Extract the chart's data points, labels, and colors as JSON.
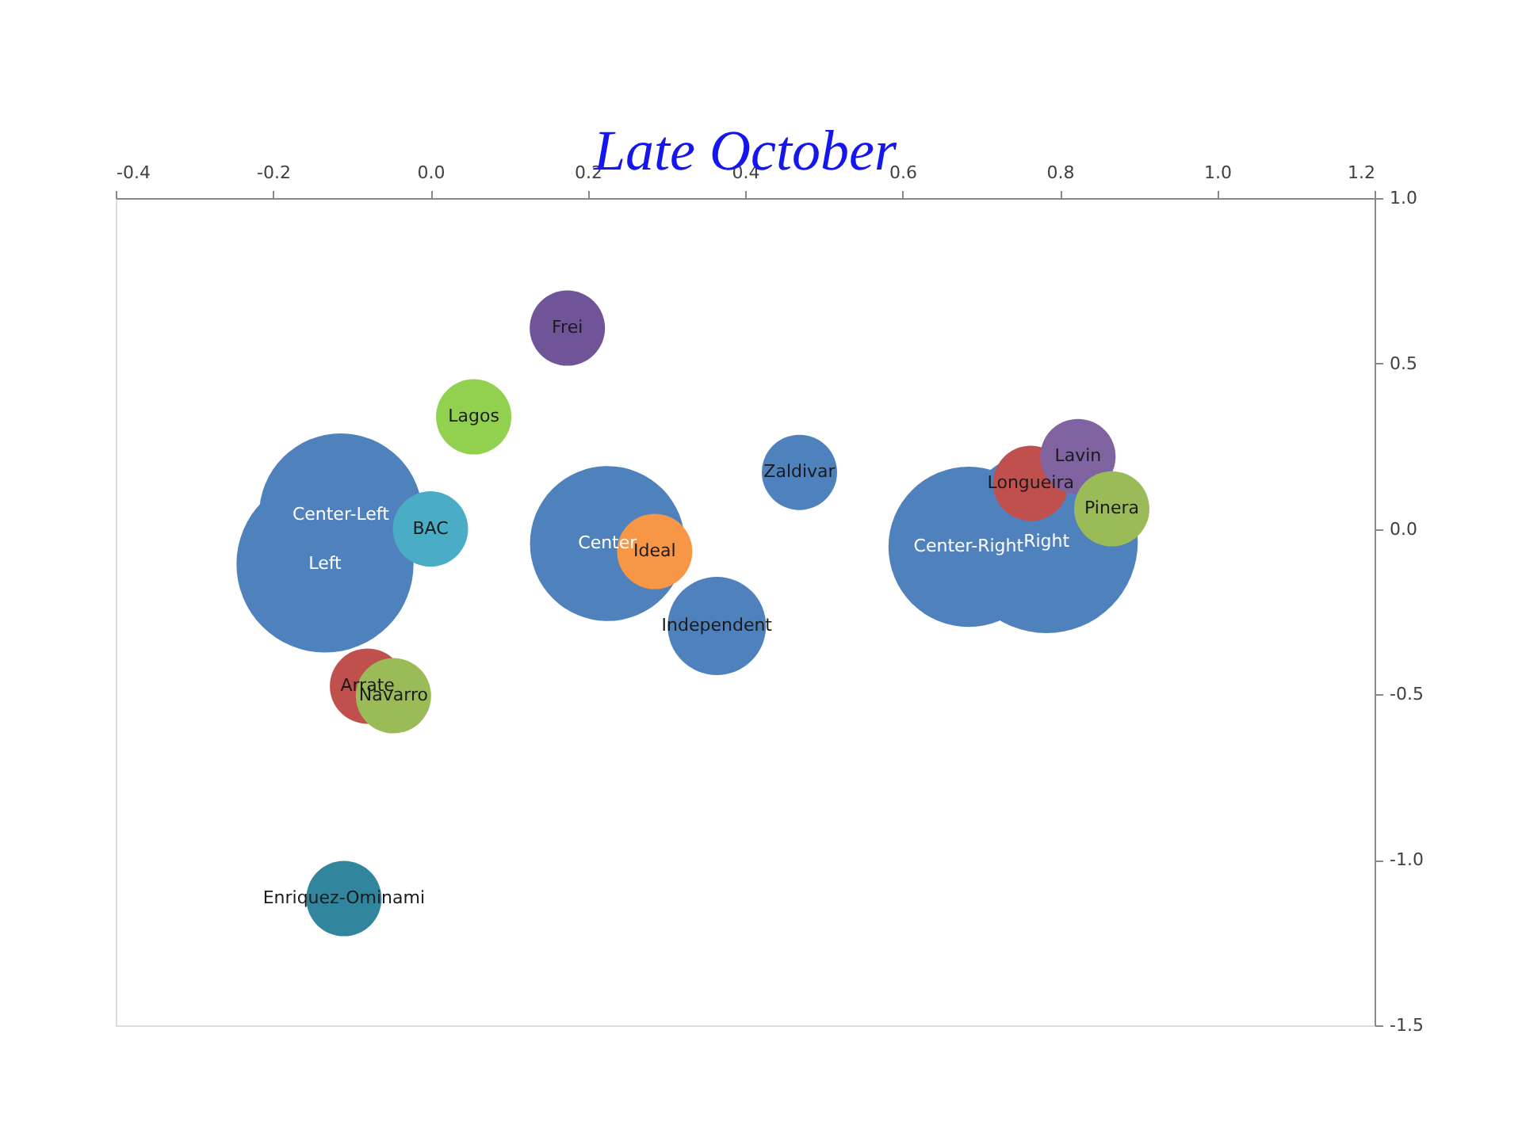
{
  "chart_data": {
    "type": "bubble",
    "title": "Late October",
    "series": [
      {
        "name": "Right",
        "color": "#4f81bd",
        "x": [
          0.783
        ],
        "values": [
          -0.039
        ],
        "sizes": [
          1.0
        ]
      },
      {
        "name": "Center-Right",
        "color": "#4f81bd",
        "x": [
          0.684
        ],
        "values": [
          -0.054
        ],
        "sizes": [
          0.77
        ]
      },
      {
        "name": "Center-Left",
        "color": "#4f81bd",
        "x": [
          -0.114
        ],
        "values": [
          0.042
        ],
        "sizes": [
          0.8
        ]
      },
      {
        "name": "Left",
        "color": "#4f81bd",
        "x": [
          -0.134
        ],
        "values": [
          -0.106
        ],
        "sizes": [
          0.94
        ]
      },
      {
        "name": "Center",
        "color": "#4f81bd",
        "x": [
          0.225
        ],
        "values": [
          -0.044
        ],
        "sizes": [
          0.72
        ]
      },
      {
        "name": "Independent",
        "color": "#4f81bd",
        "x": [
          0.364
        ],
        "values": [
          -0.293
        ],
        "sizes": [
          0.29
        ]
      },
      {
        "name": "Zaldivar",
        "color": "#4f81bd",
        "x": [
          0.469
        ],
        "values": [
          0.171
        ],
        "sizes": [
          0.17
        ]
      },
      {
        "name": "Frei",
        "color": "#6f5597",
        "x": [
          0.174
        ],
        "values": [
          0.607
        ],
        "sizes": [
          0.17
        ]
      },
      {
        "name": "Lagos",
        "color": "#92d050",
        "x": [
          0.055
        ],
        "values": [
          0.339
        ],
        "sizes": [
          0.17
        ]
      },
      {
        "name": "BAC",
        "color": "#4bacc6",
        "x": [
          0.0
        ],
        "values": [
          0.0
        ],
        "sizes": [
          0.17
        ]
      },
      {
        "name": "Ideal",
        "color": "#f79646",
        "x": [
          0.285
        ],
        "values": [
          -0.068
        ],
        "sizes": [
          0.17
        ]
      },
      {
        "name": "Arrate",
        "color": "#c0504d",
        "x": [
          -0.08
        ],
        "values": [
          -0.475
        ],
        "sizes": [
          0.17
        ]
      },
      {
        "name": "Navarro",
        "color": "#9bbb59",
        "x": [
          -0.047
        ],
        "values": [
          -0.504
        ],
        "sizes": [
          0.17
        ]
      },
      {
        "name": "Enriquez-Ominami",
        "color": "#31859c",
        "x": [
          -0.11
        ],
        "values": [
          -1.117
        ],
        "sizes": [
          0.17
        ]
      },
      {
        "name": "Longueira",
        "color": "#c0504d",
        "x": [
          0.763
        ],
        "values": [
          0.138
        ],
        "sizes": [
          0.17
        ]
      },
      {
        "name": "Lavin",
        "color": "#8064a2",
        "x": [
          0.823
        ],
        "values": [
          0.219
        ],
        "sizes": [
          0.17
        ]
      },
      {
        "name": "Pinera",
        "color": "#9bbb59",
        "x": [
          0.866
        ],
        "values": [
          0.061
        ],
        "sizes": [
          0.17
        ]
      }
    ],
    "xlim": [
      -0.4,
      1.2
    ],
    "xticks": [
      {
        "value": -0.4,
        "label": "-0.4"
      },
      {
        "value": -0.2,
        "label": "-0.2"
      },
      {
        "value": 0,
        "label": "0.0"
      },
      {
        "value": 0.2,
        "label": "0.2"
      },
      {
        "value": 0.4,
        "label": "0.4"
      },
      {
        "value": 0.6,
        "label": "0.6"
      },
      {
        "value": 0.8,
        "label": "0.8"
      },
      {
        "value": 1,
        "label": "1.0"
      },
      {
        "value": 1.2,
        "label": "1.2"
      }
    ],
    "ylim": [
      -1.5,
      1.0
    ],
    "yticks": [
      {
        "value": -1.5,
        "label": "-1.5"
      },
      {
        "value": -1,
        "label": "-1.0"
      },
      {
        "value": -0.5,
        "label": "-0.5"
      },
      {
        "value": 0,
        "label": "0.0"
      },
      {
        "value": 0.5,
        "label": "0.5"
      },
      {
        "value": 1,
        "label": "1.0"
      }
    ],
    "grid": false
  }
}
